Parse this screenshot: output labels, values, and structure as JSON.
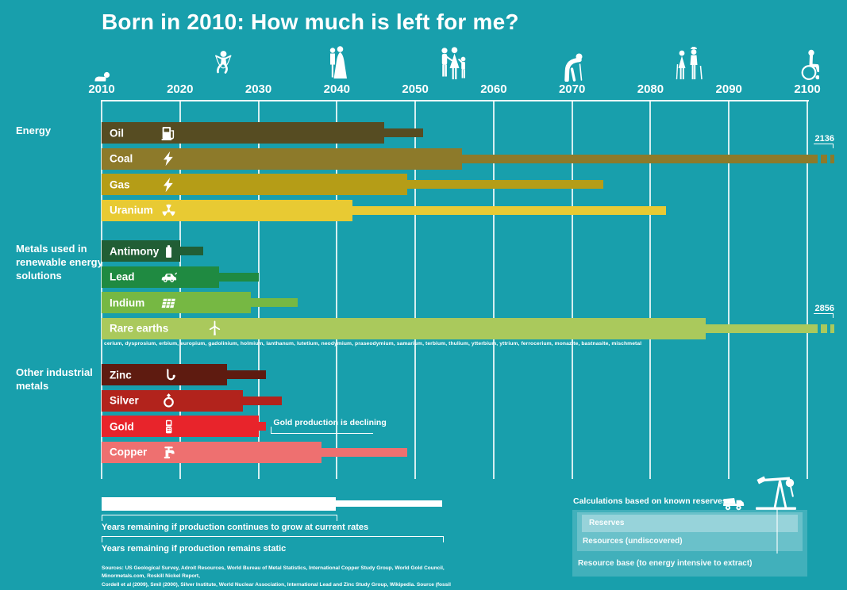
{
  "background_color": "#189fac",
  "chart_data": {
    "type": "bar",
    "orientation": "horizontal-timeline",
    "title": "Born in 2010: How much is left for me?",
    "x_axis": {
      "unit": "year",
      "range": [
        2010,
        2100
      ],
      "ticks": [
        "2010",
        "2020",
        "2030",
        "2040",
        "2050",
        "2060",
        "2070",
        "2080",
        "2090",
        "2100"
      ],
      "grid": true
    },
    "bar_meaning": {
      "thick": "Years remaining if production continues to grow at current rates",
      "thin": "Years remaining if production remains static"
    },
    "life_stages": [
      {
        "icon": "baby-icon",
        "year": 2010
      },
      {
        "icon": "child-jumping-rope-icon",
        "year": 2025.5
      },
      {
        "icon": "wedding-couple-icon",
        "year": 2040
      },
      {
        "icon": "family-icon",
        "year": 2055
      },
      {
        "icon": "elderly-bent-icon",
        "year": 2070
      },
      {
        "icon": "elderly-couple-icon",
        "year": 2085
      },
      {
        "icon": "wheelchair-icon",
        "year": 2100
      }
    ],
    "groups": [
      {
        "label": "Energy",
        "items": [
          {
            "name": "Oil",
            "icon": "fuel-pump-icon",
            "color": "#564c22",
            "grow_until": 2046,
            "static_until": 2051
          },
          {
            "name": "Coal",
            "icon": "lightning-bolt-icon",
            "color": "#8d7a2a",
            "grow_until": 2056,
            "static_until": 2136,
            "off_chart": true,
            "beyond_label": "2136"
          },
          {
            "name": "Gas",
            "icon": "lightning-bolt-icon",
            "color": "#b59d17",
            "grow_until": 2049,
            "static_until": 2074
          },
          {
            "name": "Uranium",
            "icon": "radiation-icon",
            "color": "#e8ca33",
            "grow_until": 2042,
            "static_until": 2082
          }
        ]
      },
      {
        "label": "Metals used in renewable energy solutions",
        "items": [
          {
            "name": "Antimony",
            "icon": "battery-icon",
            "color": "#215e35",
            "grow_until": 2020,
            "static_until": 2023
          },
          {
            "name": "Lead",
            "icon": "electric-car-icon",
            "color": "#1f8a41",
            "grow_until": 2025,
            "static_until": 2030
          },
          {
            "name": "Indium",
            "icon": "solar-panel-icon",
            "color": "#76b843",
            "grow_until": 2029,
            "static_until": 2035
          },
          {
            "name": "Rare earths",
            "icon": "wind-turbine-icon",
            "color": "#aac95c",
            "grow_until": 2087,
            "static_until": 2856,
            "off_chart": true,
            "beyond_label": "2856",
            "elements_note": "cerium, dysprosium, erbium, europium, gadolinium, holmium, lanthanum, lutetium, neodymium, praseodymium, samarium, terbium, thulium, ytterbium, yttrium, ferrocerium, monazite, bastnasite, mischmetal"
          }
        ]
      },
      {
        "label": "Other industrial metals",
        "items": [
          {
            "name": "Zinc",
            "icon": "saxophone-icon",
            "color": "#5e1b10",
            "grow_until": 2026,
            "static_until": 2031
          },
          {
            "name": "Silver",
            "icon": "ring-icon",
            "color": "#b2231c",
            "grow_until": 2028,
            "static_until": 2033
          },
          {
            "name": "Gold",
            "icon": "mobile-phone-icon",
            "color": "#e8242b",
            "grow_until": 2030,
            "static_until": 2031,
            "annotation": "Gold production is declining"
          },
          {
            "name": "Copper",
            "icon": "tap-icon",
            "color": "#ee7070",
            "grow_until": 2038,
            "static_until": 2049
          }
        ]
      }
    ]
  },
  "legend": {
    "grow_label": "Years remaining if production continues to grow at current rates",
    "static_label": "Years remaining if production remains static"
  },
  "reserves_legend": {
    "heading": "Calculations based on known reserves:",
    "layers": [
      "Reserves",
      "Resources (undiscovered)",
      "Resource base (to energy intensive to extract)"
    ]
  },
  "sources_line1": "Sources: US Geological Survey, Adroit Resources, World Bureau of Metal Statistics, International Copper Study Group, World Gold Council, Minormetals.com, Roskill Nickel Report,",
  "sources_line2": "Cordell et al (2009), Smil (2000), Silver Institute, World Nuclear Association, International Lead and Zinc Study Group, Wikipedia. Source (fossil fuels): BP Statistical Review of World Energy 2010."
}
